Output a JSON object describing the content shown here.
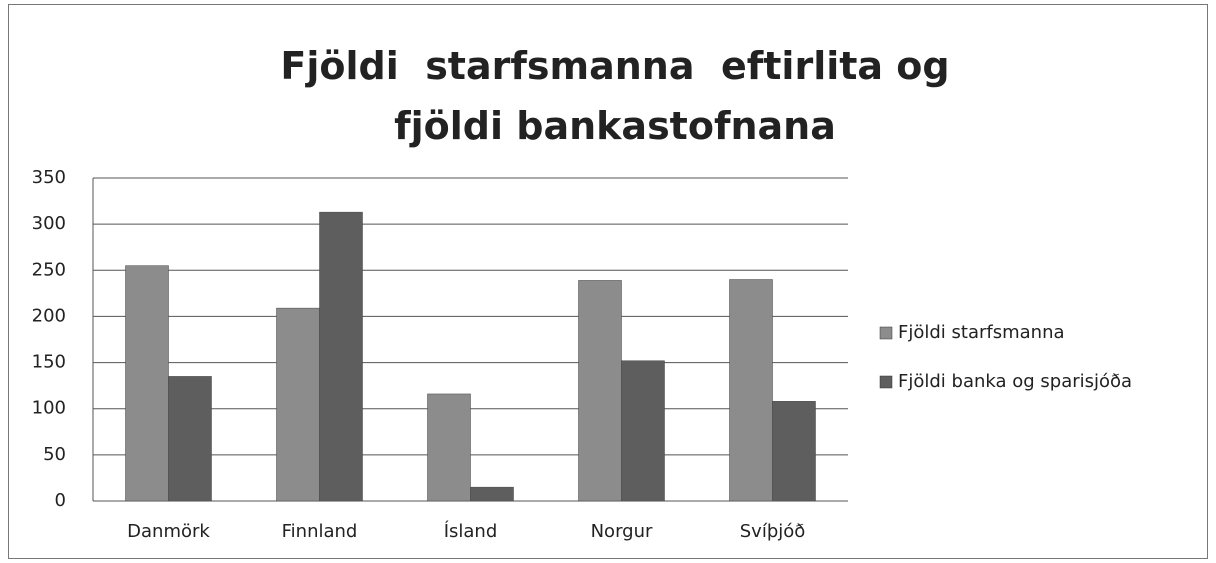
{
  "chart_data": {
    "type": "bar",
    "title": "Fjöldi  starfsmanna  eftirlita og fjöldi bankastofnana",
    "categories": [
      "Danmörk",
      "Finnland",
      "Ísland",
      "Norgur",
      "Svíþjóð"
    ],
    "series": [
      {
        "name": "Fjöldi starfsmanna",
        "color": "#8c8c8c",
        "values": [
          255,
          209,
          116,
          239,
          240
        ]
      },
      {
        "name": "Fjöldi banka og sparisjóða",
        "color": "#5e5e5e",
        "values": [
          135,
          313,
          15,
          152,
          108
        ]
      }
    ],
    "ylim": [
      0,
      350
    ],
    "yticks": [
      0,
      50,
      100,
      150,
      200,
      250,
      300,
      350
    ],
    "grid": true,
    "legend": "right"
  }
}
